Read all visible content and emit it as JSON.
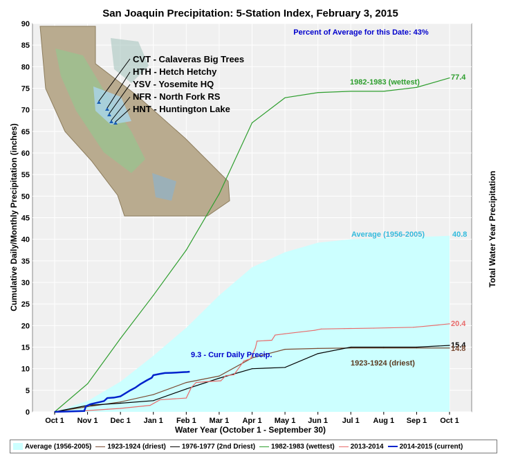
{
  "chart_data": {
    "type": "line",
    "title": "San Joaquin Precipitation: 5-Station Index, February 3, 2015",
    "xlabel": "Water Year (October 1 - September 30)",
    "ylabel": "Cumulative Daily/Monthly Precipitation (inches)",
    "ylabel_right": "Total Water Year Precipitation",
    "ylim": [
      0,
      90
    ],
    "yticks": [
      0,
      5,
      10,
      15,
      20,
      25,
      30,
      35,
      40,
      45,
      50,
      55,
      60,
      65,
      70,
      75,
      80,
      85,
      90
    ],
    "xlim": [
      0,
      12
    ],
    "categories": [
      "Oct 1",
      "Nov 1",
      "Dec 1",
      "Jan 1",
      "Feb 1",
      "Mar 1",
      "Apr 1",
      "May 1",
      "Jun 1",
      "Jul 1",
      "Aug 1",
      "Sep 1",
      "Oct 1"
    ],
    "grid": true,
    "legend_position": "bottom",
    "percent_note": "Percent of Average for this Date: 43%",
    "current_daily_note": "9.3 -  Curr Daily Precip.",
    "series": [
      {
        "name": "Average (1956-2005)",
        "color": "#ccffff",
        "style": "area",
        "x": [
          0,
          1,
          2,
          3,
          4,
          5,
          6,
          7,
          8,
          9,
          10,
          11,
          12
        ],
        "values": [
          0,
          2.5,
          7.0,
          13.0,
          19.5,
          27.0,
          33.5,
          37.0,
          39.2,
          40.0,
          40.3,
          40.5,
          40.8
        ],
        "label": "Average (1956-2005)",
        "end_value": "40.8"
      },
      {
        "name": "1923-1924 (driest)",
        "color": "#7a4a32",
        "style": "line",
        "x": [
          0,
          1,
          2,
          3,
          4,
          5,
          6,
          7,
          8,
          9,
          10,
          11,
          12
        ],
        "values": [
          0,
          1.2,
          2.3,
          4.0,
          6.8,
          8.3,
          12.5,
          14.5,
          14.7,
          14.8,
          14.8,
          14.8,
          14.8
        ],
        "label": "1923-1924 (driest)",
        "end_value": "14.8"
      },
      {
        "name": "1976-1977 (2nd Driest)",
        "color": "#000000",
        "style": "line",
        "x": [
          0,
          1,
          2,
          3,
          4,
          5,
          6,
          7,
          8,
          9,
          10,
          11,
          12
        ],
        "values": [
          0,
          1.5,
          2.0,
          2.6,
          5.3,
          7.8,
          10.0,
          10.3,
          13.5,
          15.0,
          15.0,
          15.0,
          15.4
        ],
        "end_value": "15.4"
      },
      {
        "name": "1982-1983 (wettest)",
        "color": "#2e9e2e",
        "style": "line",
        "x": [
          0,
          1,
          2,
          3,
          4,
          5,
          6,
          7,
          8,
          9,
          10,
          11,
          12
        ],
        "values": [
          0,
          6.5,
          17.0,
          27.0,
          37.5,
          50.5,
          67.0,
          72.8,
          74.0,
          74.3,
          74.3,
          75.2,
          77.4
        ],
        "label": "1982-1983 (wettest)",
        "end_value": "77.4"
      },
      {
        "name": "2013-2014",
        "color": "#e86a6a",
        "style": "step",
        "x": [
          0,
          1,
          1.6,
          2,
          2.9,
          3.2,
          4.0,
          4.15,
          4.3,
          4.6,
          5.05,
          5.2,
          5.45,
          5.75,
          5.95,
          6.1,
          6.15,
          6.6,
          6.7,
          7.0,
          7.9,
          8.1,
          8.8,
          9.7,
          10.9,
          11.2,
          12
        ],
        "values": [
          0,
          0.3,
          0.6,
          0.8,
          1.5,
          2.8,
          3.2,
          5.6,
          6.8,
          7.0,
          7.2,
          8.4,
          8.6,
          11.8,
          12.3,
          14.8,
          16.4,
          16.6,
          17.8,
          18.1,
          18.9,
          19.2,
          19.3,
          19.4,
          19.6,
          19.8,
          20.4
        ],
        "end_value": "20.4"
      },
      {
        "name": "2014-2015 (current)",
        "color": "#0022cc",
        "style": "step",
        "x": [
          0,
          0.9,
          0.95,
          1.1,
          1.5,
          1.6,
          1.8,
          2.0,
          2.15,
          2.3,
          2.45,
          2.6,
          2.8,
          2.95,
          3.0,
          3.2,
          3.35,
          3.55,
          3.7,
          3.9,
          4.03,
          4.1
        ],
        "values": [
          0,
          0.2,
          1.3,
          1.8,
          2.5,
          3.2,
          3.3,
          3.6,
          4.3,
          5.0,
          5.6,
          6.4,
          7.3,
          7.9,
          8.5,
          8.8,
          9.0,
          9.05,
          9.1,
          9.2,
          9.25,
          9.3
        ]
      }
    ]
  },
  "map_inset": {
    "stations": [
      "CVT - Calaveras Big Trees",
      "HTH - Hetch Hetchy",
      "YSV - Yosemite HQ",
      "NFR - North Fork RS",
      "HNT - Huntington Lake"
    ]
  }
}
